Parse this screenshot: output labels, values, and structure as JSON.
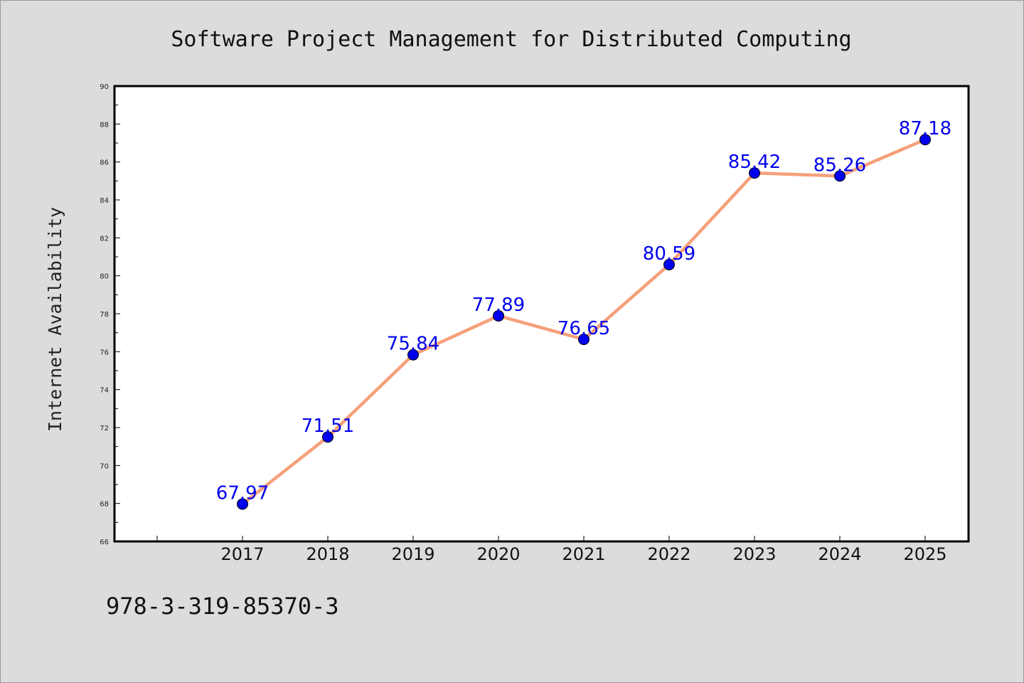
{
  "chart_data": {
    "type": "line",
    "title": "Software Project Management for Distributed Computing",
    "ylabel": "Internet Availability",
    "xlabel": "",
    "categories": [
      "2017",
      "2018",
      "2019",
      "2020",
      "2021",
      "2022",
      "2023",
      "2024",
      "2025"
    ],
    "series": [
      {
        "values": [
          67.97,
          71.51,
          75.84,
          77.89,
          76.65,
          80.59,
          85.42,
          85.26,
          87.18
        ],
        "line_color": "#f5a07a",
        "marker_color": "#0000ee"
      }
    ],
    "data_labels": [
      "67.97",
      "71.51",
      "75.84",
      "77.89",
      "76.65",
      "80.59",
      "85.42",
      "85.26",
      "87.18"
    ],
    "data_label_color": "#0000ee",
    "ylim": [
      66,
      90
    ],
    "yticks": [
      "66",
      "68",
      "70",
      "72",
      "74",
      "76",
      "78",
      "80",
      "82",
      "84",
      "86",
      "88",
      "90"
    ],
    "grid": false,
    "legend": "none"
  },
  "footer": {
    "isbn": "978-3-319-85370-3"
  }
}
